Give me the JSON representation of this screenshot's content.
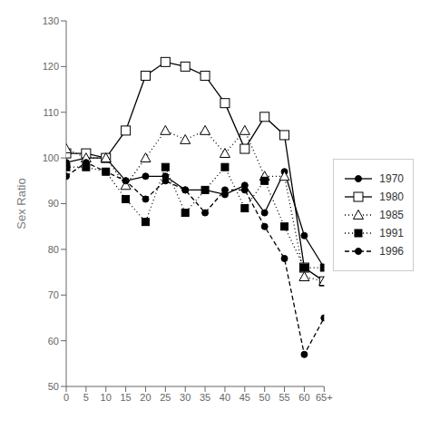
{
  "chart_data": {
    "type": "line",
    "x": [
      0,
      5,
      10,
      15,
      20,
      25,
      30,
      35,
      40,
      45,
      50,
      55,
      60,
      65
    ],
    "xlim": [
      0,
      65
    ],
    "xticks": [
      0,
      5,
      10,
      15,
      20,
      25,
      30,
      35,
      40,
      45,
      50,
      55,
      60,
      {
        "value": 65,
        "label": "65+"
      }
    ],
    "ylim": [
      50,
      130
    ],
    "yticks": [
      50,
      60,
      70,
      80,
      90,
      100,
      110,
      120,
      130
    ],
    "ylabel": "Sex Ratio",
    "grid": false,
    "legend": "right",
    "series": [
      {
        "name": "1970",
        "color": "#000000",
        "marker": "circle",
        "line_style": "solid",
        "values": [
          99,
          100,
          100,
          95,
          96,
          96,
          93,
          93,
          92,
          94,
          88,
          97,
          83,
          76
        ]
      },
      {
        "name": "1980",
        "color": "#000000",
        "marker": "square-open",
        "line_style": "solid",
        "values": [
          101,
          101,
          100,
          106,
          118,
          121,
          120,
          118,
          112,
          102,
          109,
          105,
          76,
          73
        ]
      },
      {
        "name": "1985",
        "color": "#000000",
        "marker": "triangle-open",
        "line_style": "dotted",
        "values": [
          102,
          100,
          100,
          94,
          100,
          106,
          104,
          106,
          101,
          106,
          96,
          96,
          74,
          73
        ]
      },
      {
        "name": "1991",
        "color": "#000000",
        "marker": "square",
        "line_style": "dotted",
        "values": [
          98,
          98,
          97,
          91,
          86,
          98,
          88,
          93,
          98,
          89,
          95,
          85,
          76,
          76
        ]
      },
      {
        "name": "1996",
        "color": "#000000",
        "marker": "circle",
        "line_style": "dashed",
        "values": [
          96,
          99,
          97,
          95,
          91,
          95,
          93,
          88,
          93,
          93,
          85,
          78,
          57,
          65
        ]
      }
    ]
  }
}
